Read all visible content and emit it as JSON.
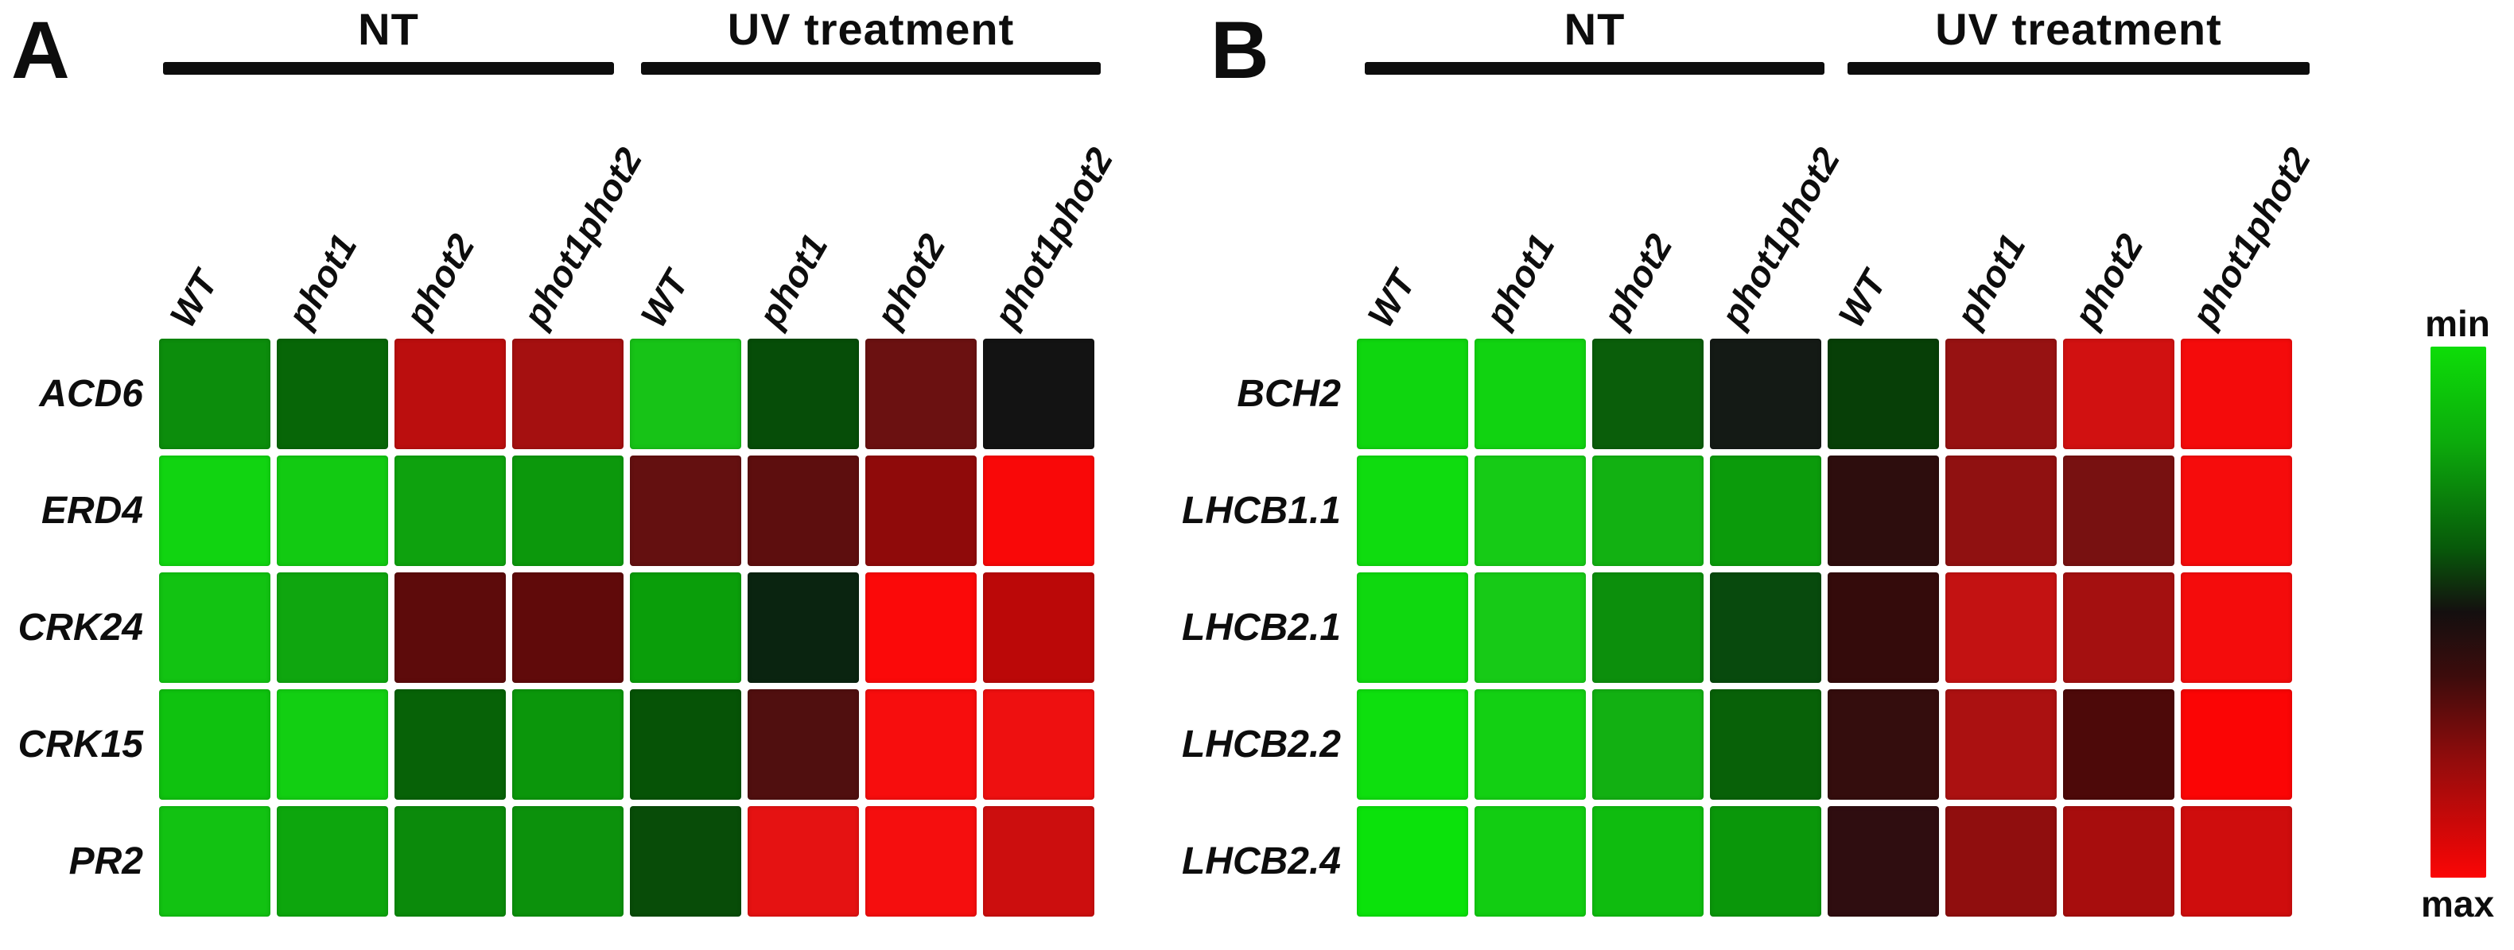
{
  "figure": {
    "panels": [
      {
        "letter": "A",
        "groups": [
          {
            "label": "NT"
          },
          {
            "label": "UV treatment"
          }
        ],
        "col_labels": [
          "WT",
          "phot1",
          "phot2",
          "phot1phot2",
          "WT",
          "phot1",
          "phot2",
          "phot1phot2"
        ],
        "rows": [
          {
            "gene": "ACD6",
            "cells": [
              "#0c8d0c",
              "#076607",
              "#bb0e0e",
              "#a51010",
              "#17c317",
              "#064d08",
              "#6b1111",
              "#131313"
            ]
          },
          {
            "gene": "ERD4",
            "cells": [
              "#11d411",
              "#12ca12",
              "#0ea20e",
              "#0c980c",
              "#641010",
              "#5d0e0e",
              "#8f0a0a",
              "#f90808"
            ]
          },
          {
            "gene": "CRK24",
            "cells": [
              "#12c312",
              "#0fa60f",
              "#5d0b0b",
              "#600a0a",
              "#0a9e0a",
              "#0a2410",
              "#fb0909",
              "#bb0808"
            ]
          },
          {
            "gene": "CRK15",
            "cells": [
              "#0fc20f",
              "#12cf12",
              "#076207",
              "#0b960b",
              "#065306",
              "#500f0f",
              "#f70d0d",
              "#ee1010"
            ]
          },
          {
            "gene": "PR2",
            "cells": [
              "#12c212",
              "#0da60d",
              "#0b8a0b",
              "#0c910c",
              "#084c08",
              "#e51212",
              "#f50e0e",
              "#cc0e0e"
            ]
          }
        ]
      },
      {
        "letter": "B",
        "groups": [
          {
            "label": "NT"
          },
          {
            "label": "UV treatment"
          }
        ],
        "col_labels": [
          "WT",
          "phot1",
          "phot2",
          "phot1phot2",
          "WT",
          "phot1",
          "phot2",
          "phot1phot2"
        ],
        "rows": [
          {
            "gene": "BCH2",
            "cells": [
              "#0fd60f",
              "#11d311",
              "#0a5e0a",
              "#141a15",
              "#073f07",
              "#971212",
              "#d11111",
              "#f40b0b"
            ]
          },
          {
            "gene": "LHCB1.1",
            "cells": [
              "#0fdc0f",
              "#16cb16",
              "#12b112",
              "#0b9b0b",
              "#2d0d0d",
              "#901111",
              "#781111",
              "#f60c0c"
            ]
          },
          {
            "gene": "LHCB2.1",
            "cells": [
              "#0fd80f",
              "#17ca17",
              "#0c8f0c",
              "#084a0d",
              "#340b0b",
              "#c31212",
              "#a41010",
              "#f40c0c"
            ]
          },
          {
            "gene": "LHCB2.2",
            "cells": [
              "#0edf0e",
              "#13d013",
              "#12b012",
              "#086108",
              "#340d0d",
              "#ab1111",
              "#4d0909",
              "#fb0505"
            ]
          },
          {
            "gene": "LHCB2.4",
            "cells": [
              "#0be20b",
              "#12cd12",
              "#0fbc0f",
              "#0a970a",
              "#2f0d10",
              "#900e0e",
              "#a70d0d",
              "#cf0d0d"
            ]
          }
        ]
      }
    ],
    "legend": {
      "min_label": "min",
      "max_label": "max",
      "gradient_stops": [
        "#0ddd08 0%",
        "#0cab0c 18%",
        "#07590a 38%",
        "#140f0f 50%",
        "#3c0c0c 62%",
        "#930c0c 78%",
        "#fb0505 100%"
      ]
    }
  },
  "chart_data": [
    {
      "type": "heatmap",
      "title": "Panel A — gene expression heatmap",
      "column_groups": [
        "NT",
        "UV treatment"
      ],
      "columns": [
        "NT WT",
        "NT phot1",
        "NT phot2",
        "NT phot1phot2",
        "UV WT",
        "UV phot1",
        "UV phot2",
        "UV phot1phot2"
      ],
      "rows": [
        "ACD6",
        "ERD4",
        "CRK24",
        "CRK15",
        "PR2"
      ],
      "value_encoding": "color scale from min (bright green) through black to max (bright red); no numeric values shown",
      "cell_colors": [
        [
          "#0c8d0c",
          "#076607",
          "#bb0e0e",
          "#a51010",
          "#17c317",
          "#064d08",
          "#6b1111",
          "#131313"
        ],
        [
          "#11d411",
          "#12ca12",
          "#0ea20e",
          "#0c980c",
          "#641010",
          "#5d0e0e",
          "#8f0a0a",
          "#f90808"
        ],
        [
          "#12c312",
          "#0fa60f",
          "#5d0b0b",
          "#600a0a",
          "#0a9e0a",
          "#0a2410",
          "#fb0909",
          "#bb0808"
        ],
        [
          "#0fc20f",
          "#12cf12",
          "#076207",
          "#0b960b",
          "#065306",
          "#500f0f",
          "#f70d0d",
          "#ee1010"
        ],
        [
          "#12c212",
          "#0da60d",
          "#0b8a0b",
          "#0c910c",
          "#084c08",
          "#e51212",
          "#f50e0e",
          "#cc0e0e"
        ]
      ],
      "legend": {
        "top": "min",
        "bottom": "max"
      }
    },
    {
      "type": "heatmap",
      "title": "Panel B — gene expression heatmap",
      "column_groups": [
        "NT",
        "UV treatment"
      ],
      "columns": [
        "NT WT",
        "NT phot1",
        "NT phot2",
        "NT phot1phot2",
        "UV WT",
        "UV phot1",
        "UV phot2",
        "UV phot1phot2"
      ],
      "rows": [
        "BCH2",
        "LHCB1.1",
        "LHCB2.1",
        "LHCB2.2",
        "LHCB2.4"
      ],
      "value_encoding": "color scale from min (bright green) through black to max (bright red); no numeric values shown",
      "cell_colors": [
        [
          "#0fd60f",
          "#11d311",
          "#0a5e0a",
          "#141a15",
          "#073f07",
          "#971212",
          "#d11111",
          "#f40b0b"
        ],
        [
          "#0fdc0f",
          "#16cb16",
          "#12b112",
          "#0b9b0b",
          "#2d0d0d",
          "#901111",
          "#781111",
          "#f60c0c"
        ],
        [
          "#0fd80f",
          "#17ca17",
          "#0c8f0c",
          "#084a0d",
          "#340b0b",
          "#c31212",
          "#a41010",
          "#f40c0c"
        ],
        [
          "#0edf0e",
          "#13d013",
          "#12b012",
          "#086108",
          "#340d0d",
          "#ab1111",
          "#4d0909",
          "#fb0505"
        ],
        [
          "#0be20b",
          "#12cd12",
          "#0fbc0f",
          "#0a970a",
          "#2f0d10",
          "#900e0e",
          "#a70d0d",
          "#cf0d0d"
        ]
      ],
      "legend": {
        "top": "min",
        "bottom": "max"
      }
    }
  ]
}
